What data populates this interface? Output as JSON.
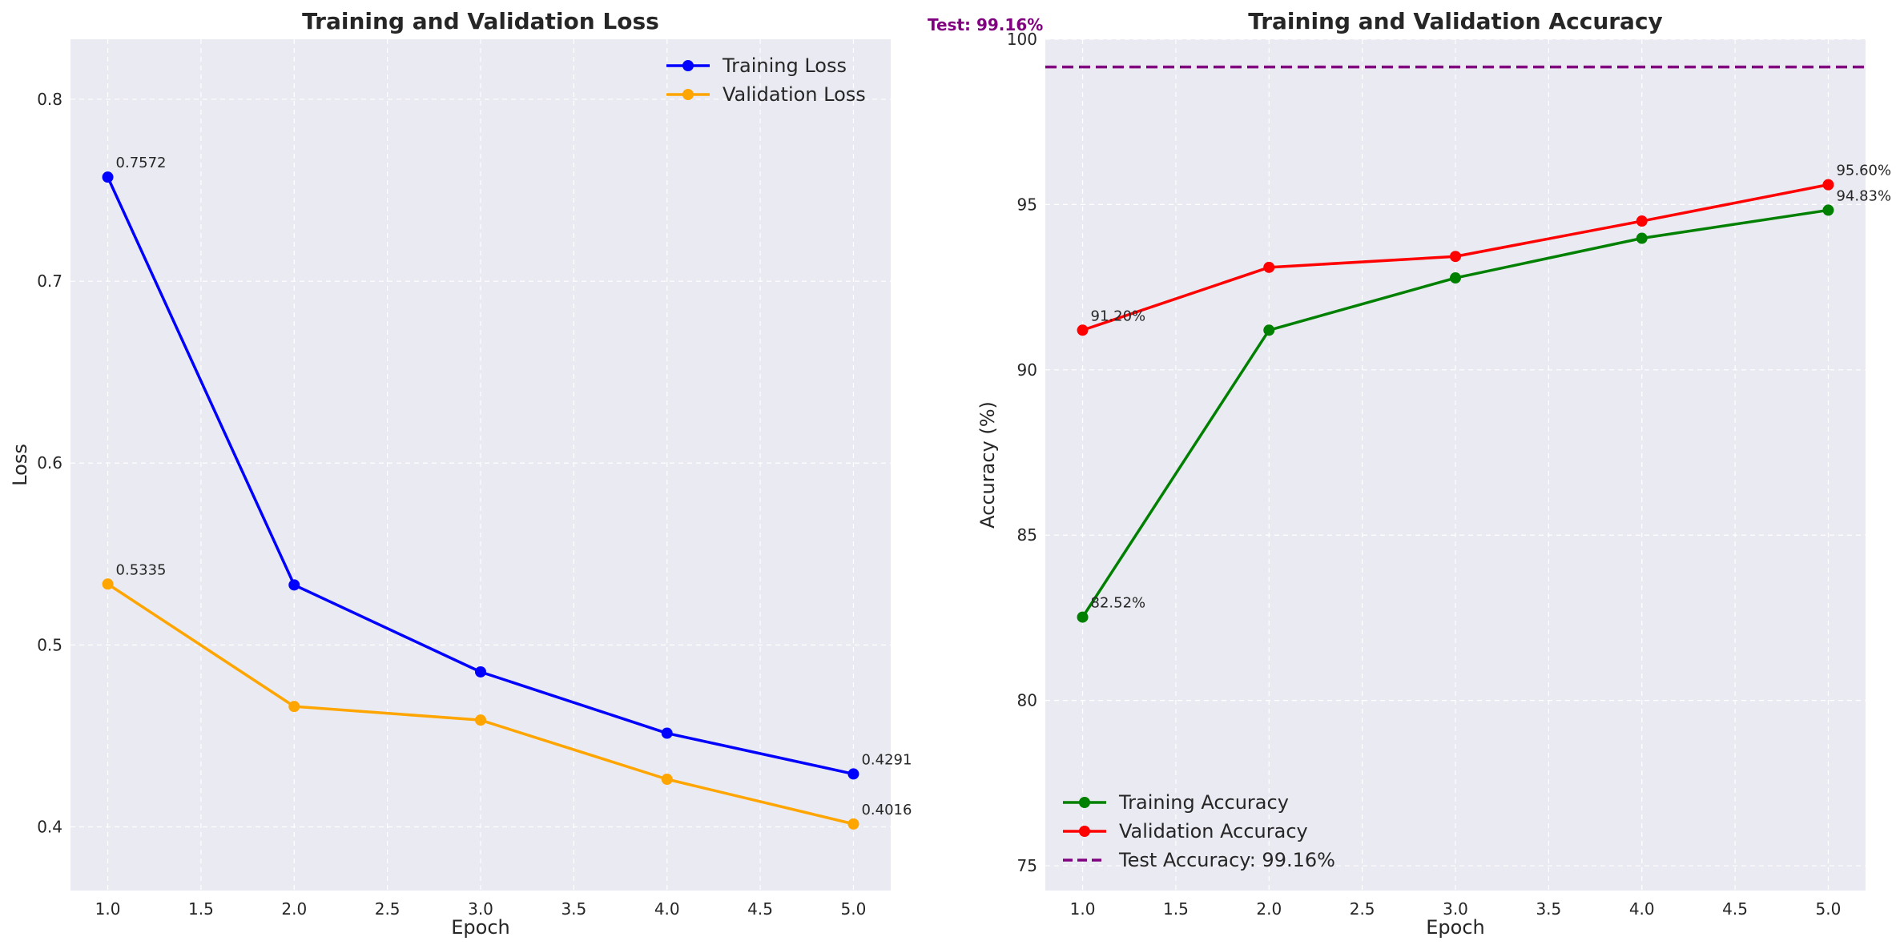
{
  "chart_data": [
    {
      "type": "line",
      "title": "Training and Validation Loss",
      "xlabel": "Epoch",
      "ylabel": "Loss",
      "xlim": [
        0.8,
        5.2
      ],
      "ylim": [
        0.365,
        0.833
      ],
      "xticks": [
        1.0,
        1.5,
        2.0,
        2.5,
        3.0,
        3.5,
        4.0,
        4.5,
        5.0
      ],
      "xtick_labels": [
        "1.0",
        "1.5",
        "2.0",
        "2.5",
        "3.0",
        "3.5",
        "4.0",
        "4.5",
        "5.0"
      ],
      "yticks": [
        0.4,
        0.5,
        0.6,
        0.7,
        0.8
      ],
      "ytick_labels": [
        "0.4",
        "0.5",
        "0.6",
        "0.7",
        "0.8"
      ],
      "grid": true,
      "legend_position": "top-right",
      "x": [
        1,
        2,
        3,
        4,
        5
      ],
      "series": [
        {
          "name": "Training Loss",
          "color": "#0000ff",
          "values": [
            0.7572,
            0.533,
            0.4852,
            0.4515,
            0.4291
          ],
          "annotations": [
            {
              "index": 0,
              "text": "0.7572"
            },
            {
              "index": 4,
              "text": "0.4291"
            }
          ]
        },
        {
          "name": "Validation Loss",
          "color": "#ffa500",
          "values": [
            0.5335,
            0.4662,
            0.4587,
            0.4262,
            0.4016
          ],
          "annotations": [
            {
              "index": 0,
              "text": "0.5335"
            },
            {
              "index": 4,
              "text": "0.4016"
            }
          ]
        }
      ]
    },
    {
      "type": "line",
      "title": "Training and Validation Accuracy",
      "xlabel": "Epoch",
      "ylabel": "Accuracy (%)",
      "xlim": [
        0.8,
        5.2
      ],
      "ylim": [
        74.25,
        100
      ],
      "xticks": [
        1.0,
        1.5,
        2.0,
        2.5,
        3.0,
        3.5,
        4.0,
        4.5,
        5.0
      ],
      "xtick_labels": [
        "1.0",
        "1.5",
        "2.0",
        "2.5",
        "3.0",
        "3.5",
        "4.0",
        "4.5",
        "5.0"
      ],
      "yticks": [
        75,
        80,
        85,
        90,
        95,
        100
      ],
      "ytick_labels": [
        "75",
        "80",
        "85",
        "90",
        "95",
        "100"
      ],
      "grid": true,
      "legend_position": "bottom-left",
      "x": [
        1,
        2,
        3,
        4,
        5
      ],
      "series": [
        {
          "name": "Training Accuracy",
          "color": "#008000",
          "values": [
            82.52,
            91.2,
            92.78,
            93.98,
            94.83
          ],
          "annotations": [
            {
              "index": 0,
              "text": "82.52%"
            },
            {
              "index": 4,
              "text": "94.83%"
            }
          ]
        },
        {
          "name": "Validation Accuracy",
          "color": "#ff0000",
          "values": [
            91.2,
            93.1,
            93.43,
            94.5,
            95.6
          ],
          "annotations": [
            {
              "index": 0,
              "text": "91.20%"
            },
            {
              "index": 4,
              "text": "95.60%"
            }
          ]
        }
      ],
      "reference_line": {
        "name": "Test Accuracy: 99.16%",
        "value": 99.16,
        "color": "#800080",
        "style": "dashed",
        "label": "Test: 99.16%"
      }
    }
  ]
}
